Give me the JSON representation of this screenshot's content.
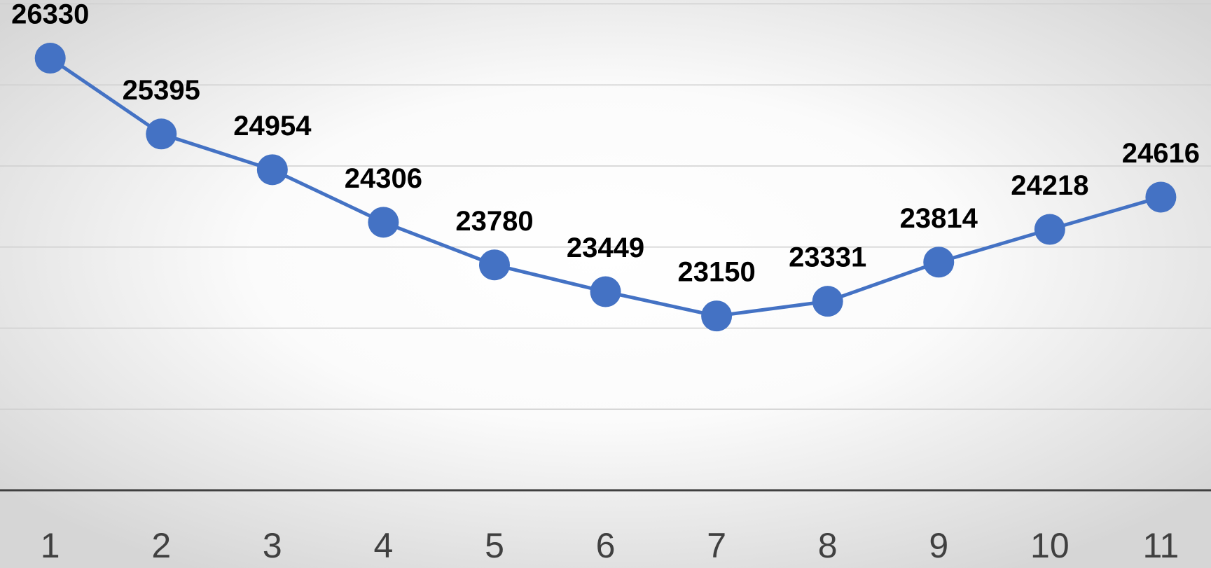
{
  "chart_data": {
    "type": "line",
    "categories": [
      "1",
      "2",
      "3",
      "4",
      "5",
      "6",
      "7",
      "8",
      "9",
      "10",
      "11"
    ],
    "series": [
      {
        "color": "#4472c4",
        "values": [
          26330,
          25395,
          24954,
          24306,
          23780,
          23449,
          23150,
          23331,
          23814,
          24218,
          24616
        ]
      }
    ],
    "ylim": [
      21000,
      27000
    ],
    "yticks": [
      21000,
      22000,
      23000,
      24000,
      25000,
      26000,
      27000
    ],
    "grid": true
  }
}
